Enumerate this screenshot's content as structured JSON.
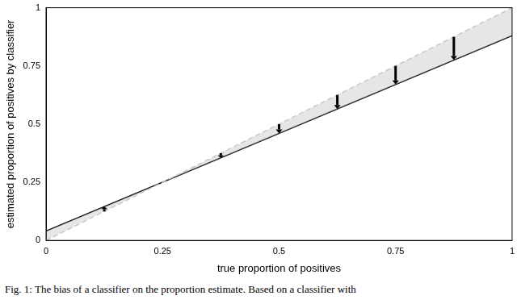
{
  "chart_data": {
    "type": "scatter",
    "x_label": "true proportion of positives",
    "y_label": "estimated proportion of positives by classifier",
    "caption": "Fig. 1: The bias of a classifier on the proportion estimate. Based on a classifier with",
    "xlim": [
      0,
      1
    ],
    "xticks": [
      0,
      0.25,
      0.5,
      0.75,
      1
    ],
    "ylim": [
      0,
      1
    ],
    "yticks": [
      0,
      0.25,
      0.5,
      0.75,
      1
    ],
    "grid": false,
    "series": [
      {
        "type": "line",
        "color": "#000000",
        "line_style": "solid",
        "x": [
          0,
          1
        ],
        "values": [
          0.04,
          0.88
        ]
      },
      {
        "type": "line",
        "color": "#c8c8c8",
        "line_style": "dashed",
        "x": [
          0,
          1
        ],
        "values": [
          0,
          1
        ]
      }
    ],
    "arrows": {
      "color": "#000000",
      "x": [
        0.125,
        0.375,
        0.5,
        0.625,
        0.75,
        0.875
      ],
      "from": [
        0.125,
        0.375,
        0.5,
        0.625,
        0.75,
        0.875
      ],
      "to": [
        0.145,
        0.355,
        0.46,
        0.565,
        0.67,
        0.775
      ]
    }
  }
}
